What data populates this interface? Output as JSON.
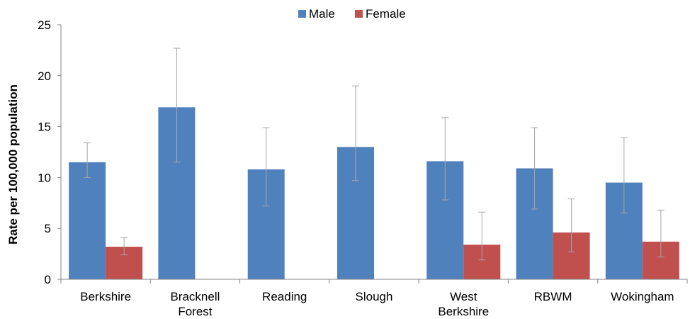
{
  "chart_data": {
    "type": "bar",
    "title": "",
    "xlabel": "",
    "ylabel": "Rate per 100,000 population",
    "ylim": [
      0,
      25
    ],
    "yticks": [
      0,
      5,
      10,
      15,
      20,
      25
    ],
    "grid": false,
    "legend_position": "top",
    "categories": [
      [
        "Berkshire"
      ],
      [
        "Bracknell",
        "Forest"
      ],
      [
        "Reading"
      ],
      [
        "Slough"
      ],
      [
        "West",
        "Berkshire"
      ],
      [
        "RBWM"
      ],
      [
        "Wokingham"
      ]
    ],
    "series": [
      {
        "name": "Male",
        "color": "#4f81bd",
        "values": [
          11.5,
          16.9,
          10.8,
          13.0,
          11.6,
          10.9,
          9.5
        ],
        "error_low": [
          10.0,
          11.5,
          7.2,
          9.7,
          7.8,
          6.9,
          6.5
        ],
        "error_high": [
          13.4,
          22.7,
          14.9,
          19.0,
          15.9,
          14.9,
          13.9
        ]
      },
      {
        "name": "Female",
        "color": "#c0504d",
        "values": [
          3.2,
          null,
          null,
          null,
          3.4,
          4.6,
          3.7
        ],
        "error_low": [
          2.4,
          null,
          null,
          null,
          1.9,
          2.7,
          2.2
        ],
        "error_high": [
          4.1,
          null,
          null,
          null,
          6.6,
          7.9,
          6.8
        ]
      }
    ]
  }
}
